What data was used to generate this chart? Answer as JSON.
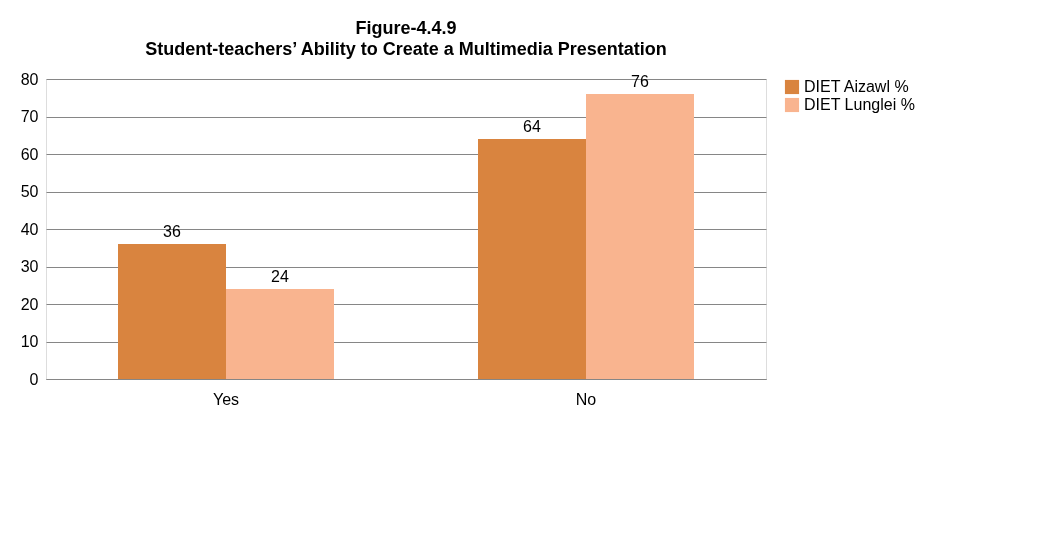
{
  "chart_data": {
    "type": "bar",
    "title": "Figure-4.4.9",
    "subtitle": "Student-teachers’ Ability to Create a Multimedia Presentation",
    "categories": [
      "Yes",
      "No"
    ],
    "series": [
      {
        "name": "DIET Aizawl %",
        "color": "#d9843f",
        "values": [
          36,
          64
        ]
      },
      {
        "name": "DIET Lunglei %",
        "color": "#f9b48f",
        "values": [
          24,
          76
        ]
      }
    ],
    "ylim": [
      0,
      80
    ],
    "yticks": [
      0,
      10,
      20,
      30,
      40,
      50,
      60,
      70,
      80
    ],
    "grid": "y",
    "legend": "right",
    "data_labels": true
  }
}
